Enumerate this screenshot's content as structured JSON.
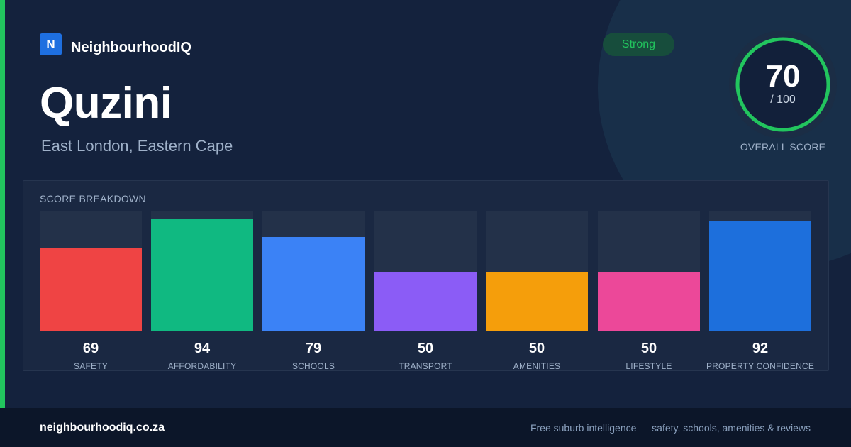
{
  "brand": {
    "logo_letter": "N",
    "name": "NeighbourhoodIQ"
  },
  "suburb": {
    "name": "Quzini",
    "location": "East London, Eastern Cape"
  },
  "badge": {
    "label": "Strong"
  },
  "overall": {
    "score": 70,
    "score_text": "70",
    "out_of": "/ 100",
    "label": "OVERALL SCORE",
    "ring_color": "#22c55e"
  },
  "breakdown": {
    "title": "SCORE BREAKDOWN",
    "items": [
      {
        "label": "SAFETY",
        "value": 69,
        "value_text": "69",
        "color": "#ef4444"
      },
      {
        "label": "AFFORDABILITY",
        "value": 94,
        "value_text": "94",
        "color": "#10b981"
      },
      {
        "label": "SCHOOLS",
        "value": 79,
        "value_text": "79",
        "color": "#3b82f6"
      },
      {
        "label": "TRANSPORT",
        "value": 50,
        "value_text": "50",
        "color": "#8b5cf6"
      },
      {
        "label": "AMENITIES",
        "value": 50,
        "value_text": "50",
        "color": "#f59e0b"
      },
      {
        "label": "LIFESTYLE",
        "value": 50,
        "value_text": "50",
        "color": "#ec4899"
      },
      {
        "label": "PROPERTY CONFIDENCE",
        "value": 92,
        "value_text": "92",
        "color": "#1d6fdc"
      }
    ]
  },
  "footer": {
    "url": "neighbourhoodiq.co.za",
    "tagline": "Free suburb intelligence — safety, schools, amenities & reviews"
  }
}
